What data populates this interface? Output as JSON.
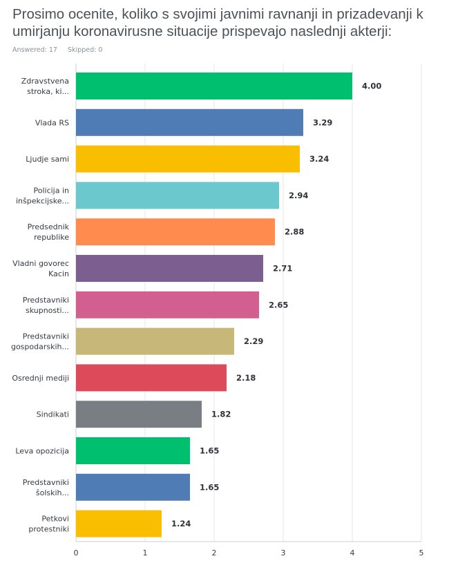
{
  "question": {
    "title": "Prosimo ocenite, koliko s svojimi javnimi ravnanji in prizadevanji k umirjanju koronavirusne situacije prispevajo naslednji akterji:"
  },
  "summary": {
    "answered": "Answered: 17",
    "skipped": "Skipped: 0"
  },
  "colors": [
    "#00bf6f",
    "#507cb6",
    "#f9be00",
    "#6bc8cd",
    "#ff8b4f",
    "#7d5e90",
    "#d25f90",
    "#c7b879",
    "#dd4a5a",
    "#787e84"
  ],
  "chart_data": {
    "type": "bar",
    "orientation": "horizontal",
    "categories": [
      [
        "Zdravstvena",
        "stroka, ki..."
      ],
      [
        "Vlada RS"
      ],
      [
        "Ljudje sami"
      ],
      [
        "Policija in",
        "inšpekcijske..."
      ],
      [
        "Predsednik",
        "republike"
      ],
      [
        "Vladni govorec",
        "Kacin"
      ],
      [
        "Predstavniki",
        "skupnosti..."
      ],
      [
        "Predstavniki",
        "gospodarskih..."
      ],
      [
        "Osrednji mediji"
      ],
      [
        "Sindikati"
      ],
      [
        "Leva opozicija"
      ],
      [
        "Predstavniki",
        "šolskih..."
      ],
      [
        "Petkovi",
        "protestniki"
      ]
    ],
    "values": [
      4.0,
      3.29,
      3.24,
      2.94,
      2.88,
      2.71,
      2.65,
      2.29,
      2.18,
      1.82,
      1.65,
      1.65,
      1.24
    ],
    "value_labels": [
      "4.00",
      "3.29",
      "3.24",
      "2.94",
      "2.88",
      "2.71",
      "2.65",
      "2.29",
      "2.18",
      "1.82",
      "1.65",
      "1.65",
      "1.24"
    ],
    "xlim": [
      0,
      5
    ],
    "xticks": [
      "0",
      "1",
      "2",
      "3",
      "4",
      "5"
    ],
    "grid": true
  }
}
